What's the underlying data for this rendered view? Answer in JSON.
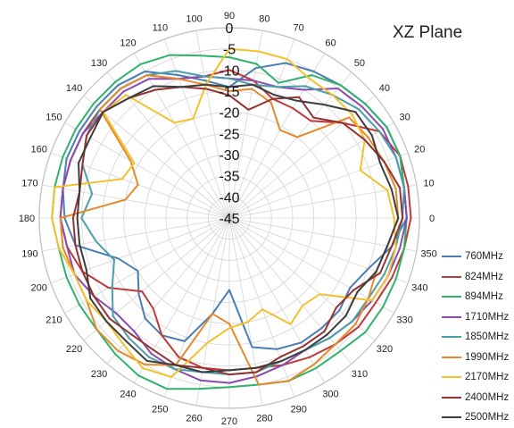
{
  "chart_data": {
    "type": "radar",
    "title": "XZ Plane",
    "angle_labels": [
      "0",
      "10",
      "20",
      "30",
      "40",
      "50",
      "60",
      "70",
      "80",
      "90",
      "100",
      "110",
      "120",
      "130",
      "140",
      "150",
      "160",
      "170",
      "180",
      "190",
      "200",
      "210",
      "220",
      "230",
      "240",
      "250",
      "260",
      "270",
      "280",
      "290",
      "300",
      "310",
      "320",
      "330",
      "340",
      "350"
    ],
    "radial_labels": [
      "0",
      "-5",
      "-10",
      "-15",
      "-20",
      "-25",
      "-30",
      "-35",
      "-40",
      "-45"
    ],
    "rlim": [
      -45,
      0
    ],
    "grid": true,
    "legend_position": "right",
    "series": [
      {
        "name": "760MHz",
        "color": "#4a7db5",
        "values": [
          -3,
          -3,
          -2,
          -2,
          -3,
          -4,
          -5,
          -6,
          -9,
          -14,
          -12,
          -9,
          -5,
          -4,
          -4,
          -4,
          -4,
          -5,
          -6,
          -8,
          -17,
          -20,
          -17,
          -14,
          -13,
          -14,
          -22,
          -28,
          -14,
          -12,
          -11,
          -11,
          -11,
          -12,
          -10,
          -6
        ]
      },
      {
        "name": "824MHz",
        "color": "#c0393a",
        "values": [
          -2,
          -2,
          -2,
          -4,
          -10,
          -15,
          -15,
          -15,
          -12,
          -10,
          -11,
          -10,
          -6,
          -5,
          -5,
          -5,
          -5,
          -5,
          -5,
          -6,
          -8,
          -12,
          -18,
          -17,
          -13,
          -10,
          -9,
          -9,
          -9,
          -8,
          -7,
          -6,
          -5,
          -5,
          -4,
          -3
        ]
      },
      {
        "name": "894MHz",
        "color": "#2db36b",
        "values": [
          -3,
          -3,
          -2,
          -2,
          -3,
          -4,
          -6,
          -11,
          -8,
          -7,
          -6,
          -4,
          -3,
          -3,
          -3,
          -3,
          -3,
          -3,
          -3,
          -4,
          -4,
          -4,
          -4,
          -3,
          -2,
          -2,
          -4,
          -5,
          -5,
          -4,
          -4,
          -4,
          -3,
          -3,
          -3,
          -3
        ]
      },
      {
        "name": "1710MHz",
        "color": "#8a4bb0",
        "values": [
          -3,
          -3,
          -3,
          -3,
          -4,
          -5,
          -10,
          -12,
          -12,
          -12,
          -11,
          -10,
          -7,
          -6,
          -6,
          -5,
          -5,
          -5,
          -5,
          -6,
          -6,
          -8,
          -10,
          -10,
          -8,
          -7,
          -6,
          -6,
          -7,
          -8,
          -9,
          -8,
          -7,
          -6,
          -5,
          -4
        ]
      },
      {
        "name": "1850MHz",
        "color": "#4a9fa8",
        "values": [
          -4,
          -3,
          -3,
          -4,
          -5,
          -7,
          -9,
          -12,
          -13,
          -12,
          -11,
          -8,
          -6,
          -5,
          -5,
          -6,
          -8,
          -12,
          -10,
          -13,
          -16,
          -13,
          -9,
          -8,
          -7,
          -7,
          -8,
          -8,
          -8,
          -9,
          -9,
          -8,
          -7,
          -7,
          -6,
          -5
        ]
      },
      {
        "name": "1990MHz",
        "color": "#e58a2c",
        "values": [
          -5,
          -5,
          -6,
          -7,
          -8,
          -20,
          -21,
          -16,
          -14,
          -15,
          -13,
          -10,
          -6,
          -5,
          -5,
          -18,
          -22,
          -20,
          -5,
          -5,
          -6,
          -6,
          -4,
          -4,
          -5,
          -8,
          -22,
          -20,
          -5,
          -4,
          -5,
          -6,
          -6,
          -7,
          -8,
          -7
        ]
      },
      {
        "name": "2170MHz",
        "color": "#f2c12e",
        "values": [
          -6,
          -7,
          -12,
          -8,
          -7,
          -7,
          -7,
          -5,
          -5,
          -5,
          -13,
          -20,
          -19,
          -7,
          -6,
          -19,
          -18,
          -3,
          -3,
          -4,
          -6,
          -6,
          -7,
          -6,
          -4,
          -5,
          -15,
          -19,
          -20,
          -22,
          -16,
          -18,
          -17,
          -6,
          -5,
          -5
        ]
      },
      {
        "name": "2400MHz",
        "color": "#953332",
        "values": [
          -4,
          -4,
          -6,
          -8,
          -10,
          -14,
          -12,
          -15,
          -19,
          -16,
          -14,
          -12,
          -10,
          -8,
          -6,
          -6,
          -8,
          -9,
          -8,
          -8,
          -8,
          -8,
          -8,
          -9,
          -9,
          -8,
          -9,
          -8,
          -8,
          -10,
          -10,
          -10,
          -12,
          -11,
          -7,
          -6
        ]
      },
      {
        "name": "2500MHz",
        "color": "#3d3d3d",
        "values": [
          -5,
          -6,
          -7,
          -6,
          -6,
          -10,
          -13,
          -14,
          -13,
          -14,
          -13,
          -12,
          -9,
          -8,
          -6,
          -7,
          -7,
          -9,
          -9,
          -9,
          -9,
          -7,
          -7,
          -7,
          -6,
          -8,
          -8,
          -9,
          -9,
          -9,
          -9,
          -9,
          -9,
          -10,
          -8,
          -7
        ]
      }
    ]
  }
}
